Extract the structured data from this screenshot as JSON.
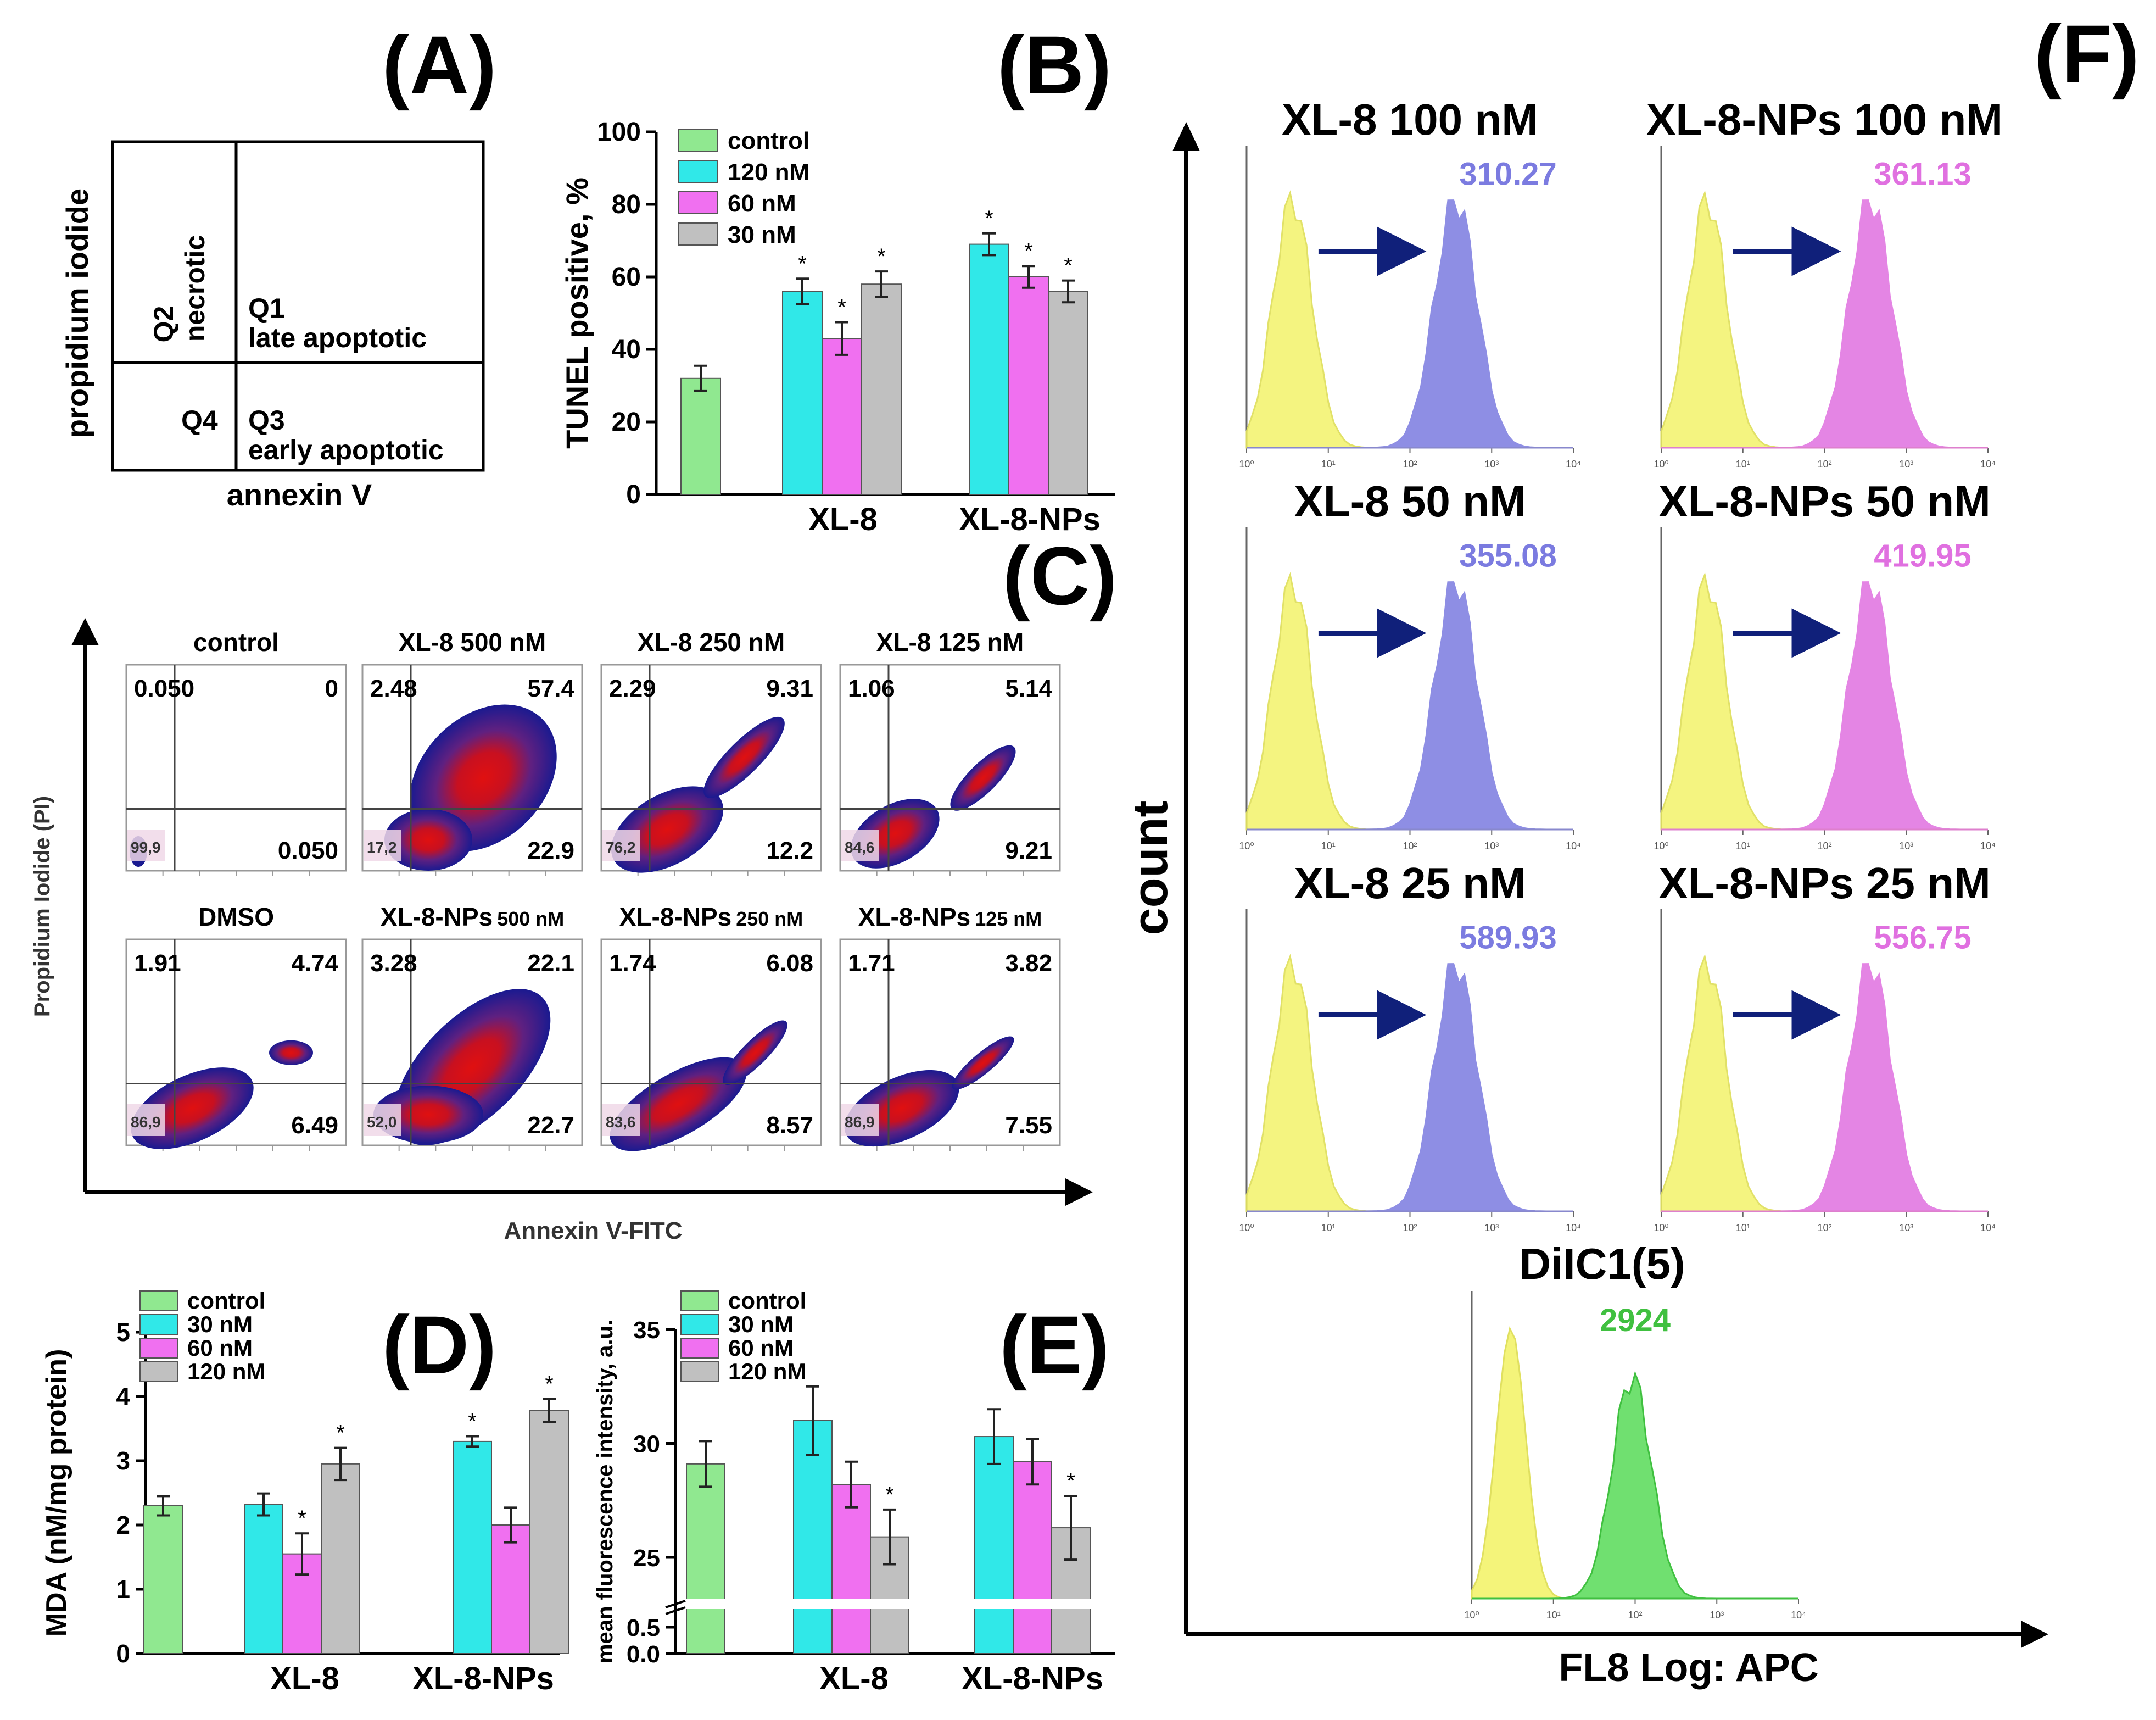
{
  "panels": {
    "A": {
      "letter": "(A)",
      "y_axis_label": "propidium iodide",
      "x_axis_label": "annexin V",
      "quadrants": {
        "q2_id": "Q2",
        "q2_name": "necrotic",
        "q1_id": "Q1",
        "q1_name": "late apoptotic",
        "q4_id": "Q4",
        "q3_id": "Q3",
        "q3_name": "early apoptotic"
      }
    },
    "B": {
      "letter": "(B)"
    },
    "C": {
      "letter": "(C)",
      "y_axis_label": "Propidium Iodide (PI)",
      "x_axis_label": "Annexin V-FITC",
      "plots": [
        {
          "title": "control",
          "tl": "0.050",
          "tr": "0",
          "bl": "99,9",
          "br": "0.050"
        },
        {
          "title": "XL-8 500 nM",
          "tl": "2.48",
          "tr": "57.4",
          "bl": "17,2",
          "br": "22.9"
        },
        {
          "title": "XL-8 250 nM",
          "tl": "2.29",
          "tr": "9.31",
          "bl": "76,2",
          "br": "12.2"
        },
        {
          "title": "XL-8 125 nM",
          "tl": "1.06",
          "tr": "5.14",
          "bl": "84,6",
          "br": "9.21"
        },
        {
          "title": "DMSO",
          "tl": "1.91",
          "tr": "4.74",
          "bl": "86,9",
          "br": "6.49"
        },
        {
          "title": "XL-8-NPs",
          "title_suffix": "500 nM",
          "tl": "3.28",
          "tr": "22.1",
          "bl": "52,0",
          "br": "22.7"
        },
        {
          "title": "XL-8-NPs",
          "title_suffix": "250 nM",
          "tl": "1.74",
          "tr": "6.08",
          "bl": "83,6",
          "br": "8.57"
        },
        {
          "title": "XL-8-NPs",
          "title_suffix": "125 nM",
          "tl": "1.71",
          "tr": "3.82",
          "bl": "86,9",
          "br": "7.55"
        }
      ]
    },
    "D": {
      "letter": "(D)"
    },
    "E": {
      "letter": "(E)"
    },
    "F": {
      "letter": "(F)",
      "y_axis_label": "count",
      "x_axis_label": "FL8 Log: APC",
      "tick_labels": [
        "10⁰",
        "10¹",
        "10²",
        "10³",
        "10⁴"
      ],
      "ctrl_title": "DiIC1(5)",
      "ctrl_value": "2924",
      "histograms": [
        {
          "title": "XL-8 100 nM",
          "value": "310.27",
          "color": "#7b7be0"
        },
        {
          "title": "XL-8-NPs 100 nM",
          "value": "361.13",
          "color": "#e070e0"
        },
        {
          "title": "XL-8 50 nM",
          "value": "355.08",
          "color": "#7b7be0"
        },
        {
          "title": "XL-8-NPs 50 nM",
          "value": "419.95",
          "color": "#e070e0"
        },
        {
          "title": "XL-8 25 nM",
          "value": "589.93",
          "color": "#7b7be0"
        },
        {
          "title": "XL-8-NPs 25 nM",
          "value": "556.75",
          "color": "#e070e0"
        }
      ]
    }
  },
  "colors": {
    "control": "#90e890",
    "cyan": "#30e8e8",
    "magenta": "#f070f0",
    "gray": "#c0c0c0",
    "arrow": "#10207a",
    "yellow": "#f4f47a"
  },
  "chart_data": [
    {
      "panel": "B",
      "type": "bar",
      "title": "",
      "ylabel": "TUNEL positive, %",
      "ylim": [
        0,
        100
      ],
      "yticks": [
        0,
        20,
        40,
        60,
        80,
        100
      ],
      "groups": [
        "",
        "XL-8",
        "XL-8-NPs"
      ],
      "legend": [
        "control",
        "120 nM",
        "60 nM",
        "30 nM"
      ],
      "series": [
        {
          "name": "control",
          "values": [
            32,
            null,
            null
          ],
          "errors": [
            3.5,
            null,
            null
          ],
          "sig": [
            false,
            false,
            false
          ]
        },
        {
          "name": "120 nM",
          "values": [
            null,
            56,
            69
          ],
          "errors": [
            null,
            3.5,
            3
          ],
          "sig": [
            false,
            true,
            true
          ]
        },
        {
          "name": "60 nM",
          "values": [
            null,
            43,
            60
          ],
          "errors": [
            null,
            4.5,
            3
          ],
          "sig": [
            false,
            true,
            true
          ]
        },
        {
          "name": "30 nM",
          "values": [
            null,
            58,
            56
          ],
          "errors": [
            null,
            3.5,
            3
          ],
          "sig": [
            false,
            true,
            true
          ]
        }
      ]
    },
    {
      "panel": "D",
      "type": "bar",
      "ylabel": "MDA (nM/mg protein)",
      "ylim": [
        0,
        5
      ],
      "yticks": [
        0,
        1,
        2,
        3,
        4,
        5
      ],
      "groups": [
        "",
        "XL-8",
        "XL-8-NPs"
      ],
      "legend": [
        "control",
        "30 nM",
        "60 nM",
        "120 nM"
      ],
      "series": [
        {
          "name": "control",
          "values": [
            2.3,
            null,
            null
          ],
          "errors": [
            0.15,
            null,
            null
          ],
          "sig": [
            false,
            false,
            false
          ]
        },
        {
          "name": "30 nM",
          "values": [
            null,
            2.32,
            3.3
          ],
          "errors": [
            null,
            0.17,
            0.08
          ],
          "sig": [
            false,
            false,
            true
          ]
        },
        {
          "name": "60 nM",
          "values": [
            null,
            1.55,
            2.0
          ],
          "errors": [
            null,
            0.32,
            0.27
          ],
          "sig": [
            false,
            true,
            false
          ]
        },
        {
          "name": "120 nM",
          "values": [
            null,
            2.95,
            3.78
          ],
          "errors": [
            null,
            0.25,
            0.18
          ],
          "sig": [
            false,
            true,
            true
          ]
        }
      ]
    },
    {
      "panel": "E",
      "type": "bar",
      "ylabel": "mean fluorescence intensity, a.u.",
      "ylim": [
        0,
        35
      ],
      "yticks": [
        "0.0",
        "0.5",
        "25",
        "30",
        "35"
      ],
      "axis_break": true,
      "groups": [
        "",
        "XL-8",
        "XL-8-NPs"
      ],
      "legend": [
        "control",
        "30 nM",
        "60 nM",
        "120 nM"
      ],
      "series": [
        {
          "name": "control",
          "values": [
            29.1,
            null,
            null
          ],
          "errors": [
            1.0,
            null,
            null
          ],
          "sig": [
            false,
            false,
            false
          ]
        },
        {
          "name": "30 nM",
          "values": [
            null,
            31.0,
            30.3
          ],
          "errors": [
            null,
            1.5,
            1.2
          ],
          "sig": [
            false,
            false,
            false
          ]
        },
        {
          "name": "60 nM",
          "values": [
            null,
            28.2,
            29.2
          ],
          "errors": [
            null,
            1.0,
            1.0
          ],
          "sig": [
            false,
            false,
            false
          ]
        },
        {
          "name": "120 nM",
          "values": [
            null,
            25.9,
            26.3
          ],
          "errors": [
            null,
            1.2,
            1.4
          ],
          "sig": [
            false,
            true,
            true
          ]
        }
      ]
    }
  ]
}
